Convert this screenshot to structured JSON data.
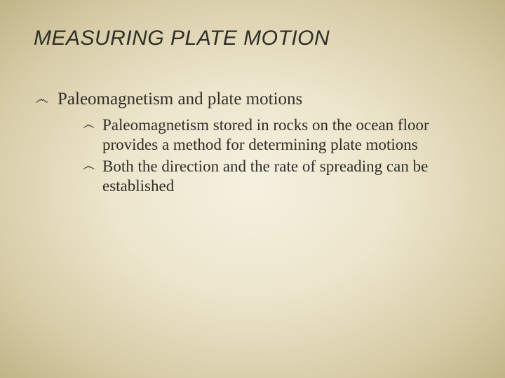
{
  "slide": {
    "title": "MEASURING PLATE MOTION",
    "bullet_glyph": "෴",
    "bullet1": {
      "text": "Paleomagnetism and plate motions"
    },
    "sub_bullets": [
      {
        "text": "Paleomagnetism stored in rocks on the ocean floor provides a method for determining plate motions"
      },
      {
        "text": "Both the direction and the rate of spreading can be established"
      }
    ],
    "colors": {
      "bg_inner": "#f5f0e0",
      "bg_mid": "#ede5cc",
      "bg_outer": "#c0b488",
      "text": "#2f2f28"
    },
    "typography": {
      "title_font": "Arial",
      "title_size_pt": 30,
      "title_style": "italic",
      "body_font": "Georgia",
      "body_size_pt_lv1": 25,
      "body_size_pt_lv2": 23
    }
  }
}
